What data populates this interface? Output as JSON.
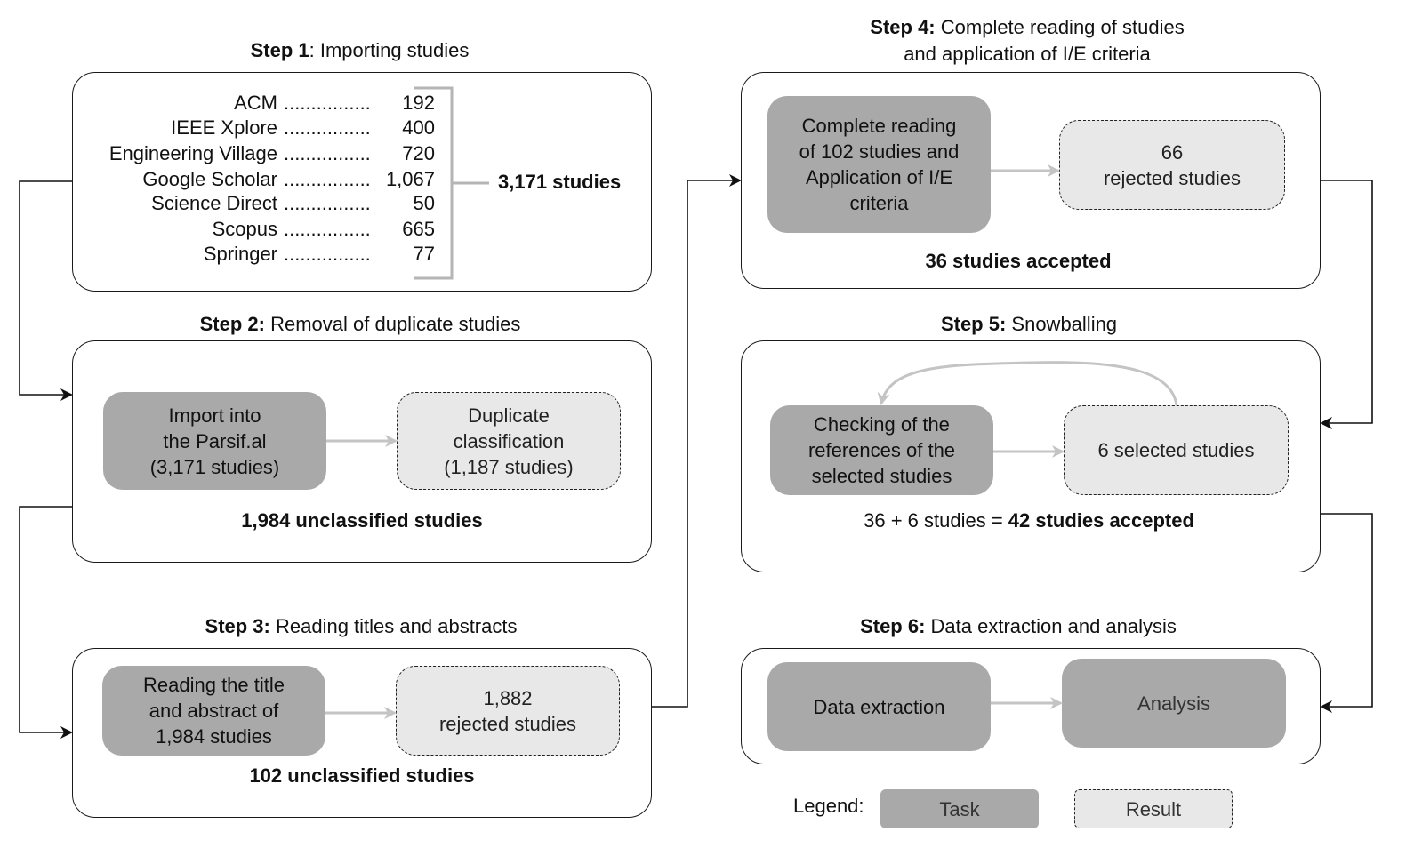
{
  "steps": {
    "step1": {
      "title_bold": "Step 1",
      "title_rest": ": Importing studies",
      "sources": [
        {
          "name": "ACM",
          "dots": "................",
          "count": "192"
        },
        {
          "name": "IEEE Xplore",
          "dots": "................",
          "count": "400"
        },
        {
          "name": "Engineering Village",
          "dots": "................",
          "count": "720"
        },
        {
          "name": "Google Scholar",
          "dots": "................",
          "count": "1,067"
        },
        {
          "name": "Science Direct",
          "dots": "................",
          "count": "50"
        },
        {
          "name": "Scopus",
          "dots": "................",
          "count": "665"
        },
        {
          "name": "Springer",
          "dots": "................",
          "count": "77"
        }
      ],
      "total": "3,171 studies"
    },
    "step2": {
      "title_bold": "Step 2:",
      "title_rest": " Removal of duplicate studies",
      "task": [
        "Import into",
        "the Parsif.al",
        "(3,171 studies)"
      ],
      "result": [
        "Duplicate",
        "classification",
        "(1,187 studies)"
      ],
      "summary": "1,984 unclassified studies"
    },
    "step3": {
      "title_bold": "Step 3:",
      "title_rest": " Reading titles and abstracts",
      "task": [
        "Reading the title",
        "and abstract of",
        "1,984 studies"
      ],
      "result": [
        "1,882",
        "rejected studies"
      ],
      "summary": "102 unclassified studies"
    },
    "step4": {
      "title_bold": "Step 4:",
      "title_rest_line1": " Complete reading of studies",
      "title_line2": "and application of I/E criteria",
      "task": [
        "Complete reading",
        "of 102 studies and",
        "Application of I/E",
        "criteria"
      ],
      "result": [
        "66",
        "rejected studies"
      ],
      "summary": "36 studies accepted"
    },
    "step5": {
      "title_bold": "Step 5:",
      "title_rest": " Snowballing",
      "task": [
        "Checking of the",
        "references of the",
        "selected studies"
      ],
      "result": [
        "6 selected studies"
      ],
      "summary_plain": "36 + 6 studies = ",
      "summary_bold": "42 studies accepted"
    },
    "step6": {
      "title_bold": "Step 6:",
      "title_rest": " Data extraction and analysis",
      "task": [
        "Data extraction"
      ],
      "task2": [
        "Analysis"
      ]
    }
  },
  "legend": {
    "label": "Legend:",
    "task": "Task",
    "result": "Result"
  },
  "colors": {
    "task_fill": "#a9a9a9",
    "result_fill": "#e8e8e8",
    "gray_arrow": "#c4c4c4",
    "black_connector": "#1a1a1a"
  }
}
